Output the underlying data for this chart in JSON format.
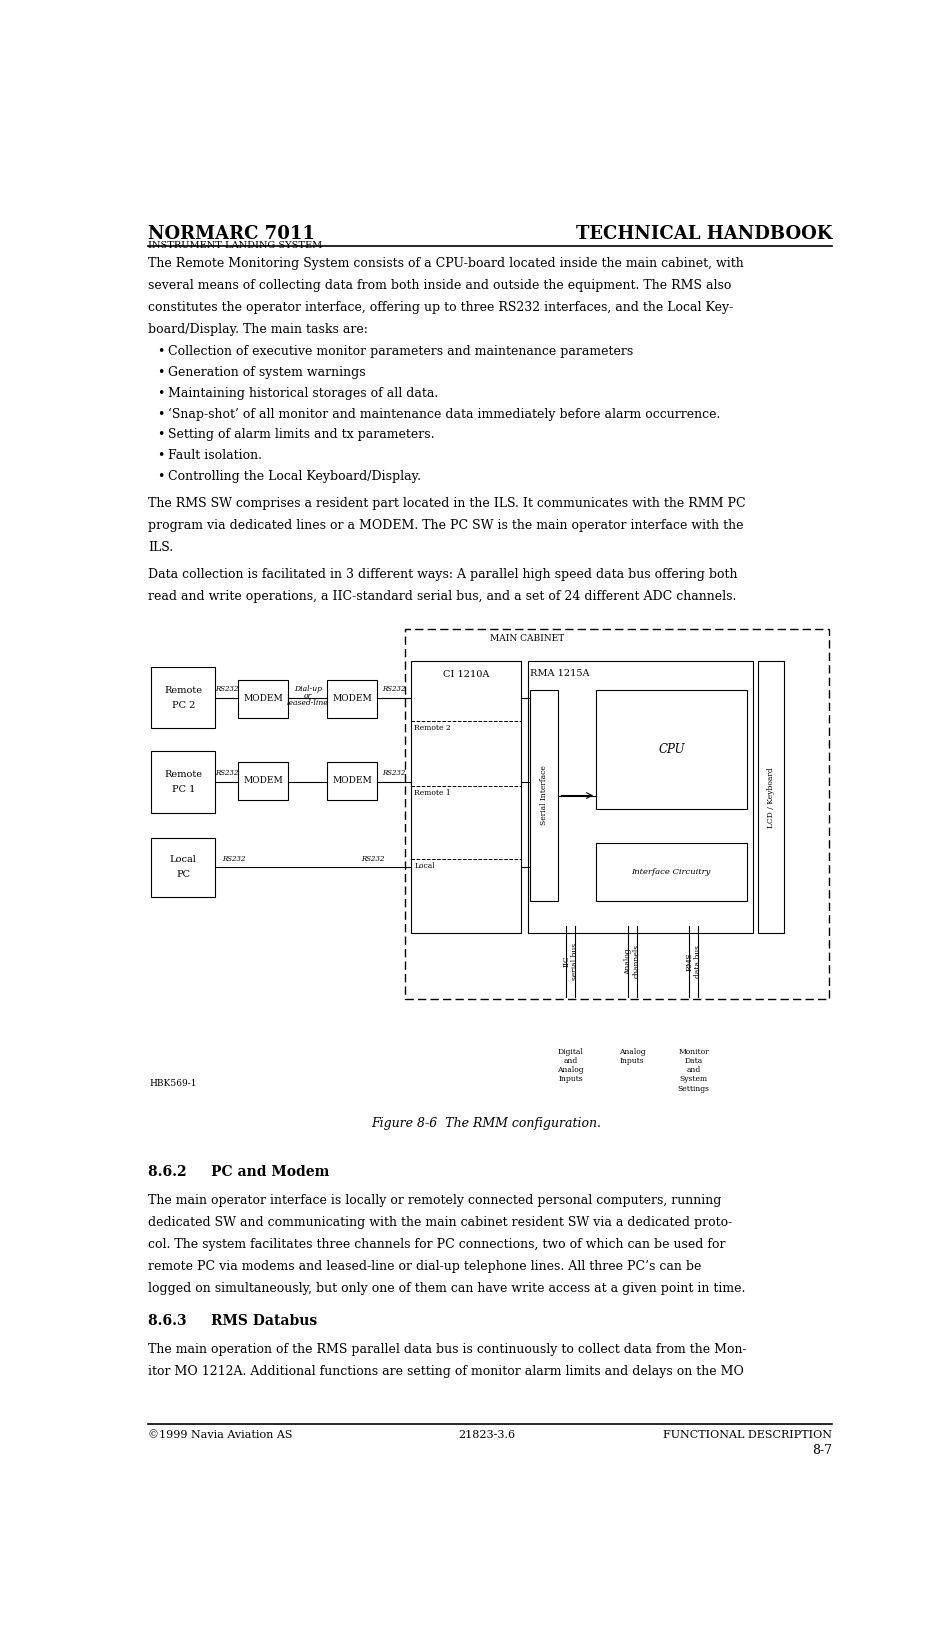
{
  "page_width": 9.49,
  "page_height": 16.32,
  "bg_color": "#ffffff",
  "header_left": "NORMARC 7011",
  "header_right": "TECHNICAL HANDBOOK",
  "header_sub": "INSTRUMENT LANDING SYSTEM",
  "footer_left": "©1999 Navia Aviation AS",
  "footer_center": "21823-3.6",
  "footer_right": "FUNCTIONAL DESCRIPTION",
  "footer_page": "8-7",
  "body_text_1": "The Remote Monitoring System consists of a CPU-board located inside the main cabinet, with\nseveral means of collecting data from both inside and outside the equipment. The RMS also\nconstitutes the operator interface, offering up to three RS232 interfaces, and the Local Key-\nboard/Display. The main tasks are:",
  "bullet_items": [
    "Collection of executive monitor parameters and maintenance parameters",
    "Generation of system warnings",
    "Maintaining historical storages of all data.",
    "‘Snap-shot’ of all monitor and maintenance data immediately before alarm occurrence.",
    "Setting of alarm limits and tx parameters.",
    "Fault isolation.",
    "Controlling the Local Keyboard/Display."
  ],
  "body_text_2": "The RMS SW comprises a resident part located in the ILS. It communicates with the RMM PC\nprogram via dedicated lines or a MODEM. The PC SW is the main operator interface with the\nILS.",
  "body_text_3": "Data collection is facilitated in 3 different ways: A parallel high speed data bus offering both\nread and write operations, a IIC-standard serial bus, and a set of 24 different ADC channels.",
  "figure_caption": "Figure 8-6  The RMM configuration.",
  "section_862_title": "8.6.2     PC and Modem",
  "section_862_text": "The main operator interface is locally or remotely connected personal computers, running\ndedicated SW and communicating with the main cabinet resident SW via a dedicated proto-\ncol. The system facilitates three channels for PC connections, two of which can be used for\nremote PC via modems and leased-line or dial-up telephone lines. All three PC’s can be\nlogged on simultaneously, but only one of them can have write access at a given point in time.",
  "section_863_title": "8.6.3     RMS Databus",
  "section_863_text": "The main operation of the RMS parallel data bus is continuously to collect data from the Mon-\nitor MO 1212A. Additional functions are setting of monitor alarm limits and delays on the MO"
}
